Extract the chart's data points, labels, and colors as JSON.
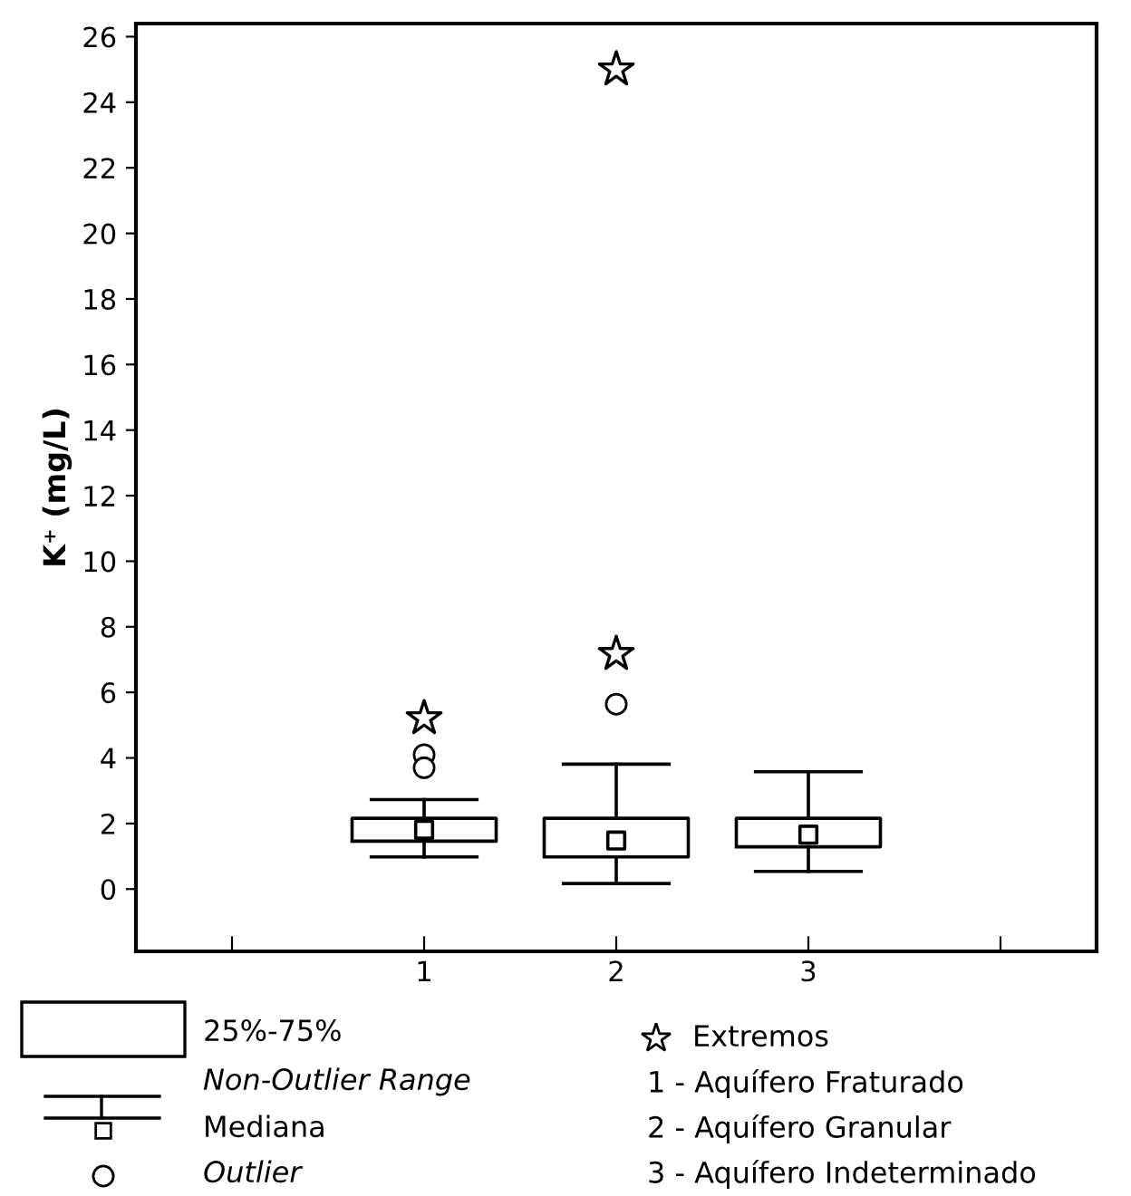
{
  "chart_data": {
    "type": "box",
    "ylabel": "K⁺ (mg/L)",
    "categories": [
      null,
      "1",
      "2",
      "3",
      null
    ],
    "boxes": [
      null,
      {
        "low": 0.98,
        "q1": 1.46,
        "median": 1.81,
        "q3": 2.16,
        "high": 2.73,
        "outliers": [
          4.1,
          3.7
        ]
      },
      {
        "low": 0.17,
        "q1": 0.98,
        "median": 1.48,
        "q3": 2.16,
        "high": 3.81,
        "outliers": [
          5.64
        ]
      },
      {
        "low": 0.54,
        "q1": 1.29,
        "median": 1.66,
        "q3": 2.16,
        "high": 3.58
      },
      null
    ],
    "series": [
      {
        "type": "scatter",
        "name": "Extremos",
        "x": [
          "1",
          "2",
          "2"
        ],
        "values": [
          5.21,
          7.17,
          25.0
        ],
        "marker": "star",
        "color": "#000000"
      }
    ],
    "ylim": [
      -1.9,
      26.4
    ],
    "yticks": [
      0,
      2,
      4,
      6,
      8,
      10,
      12,
      14,
      16,
      18,
      20,
      22,
      24,
      26
    ],
    "grid": false,
    "legend": "bottom",
    "annotations": [
      "25%-75%",
      "Non-Outlier Range",
      "Mediana",
      "Outlier",
      "1 - Aquífero Fraturado",
      "2 - Aquífero Granular",
      "3 - Aquífero Indeterminado"
    ]
  }
}
